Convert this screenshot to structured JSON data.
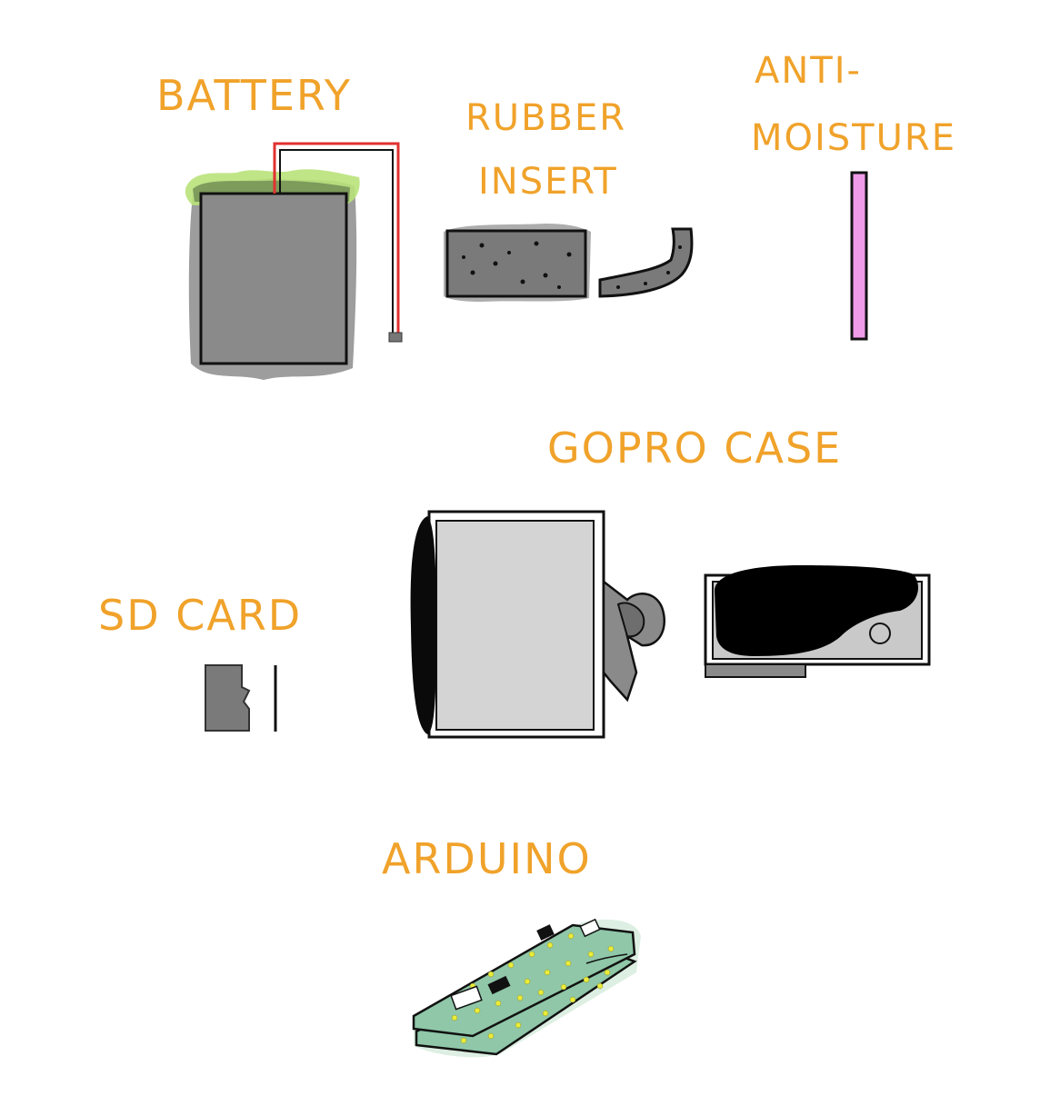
{
  "labels": {
    "battery": "BATTERY",
    "rubber_insert_line1": "RUBBER",
    "rubber_insert_line2": "INSERT",
    "anti_moisture_line1": "ANTI-",
    "anti_moisture_line2": "MOISTURE",
    "gopro_case": "GOPRO CASE",
    "sd_card": "SD CARD",
    "arduino": "ARDUINO"
  },
  "colors": {
    "label_orange": "#f0a22a",
    "battery_gray": "#8a8a8a",
    "glow_green": "#b9e27a",
    "wire_red": "#e23030",
    "anti_moisture_pink": "#f09be8",
    "pcb_green": "#8fc7a8",
    "led_yellow": "#e8ec3a",
    "case_light_gray": "#d4d4d4"
  }
}
